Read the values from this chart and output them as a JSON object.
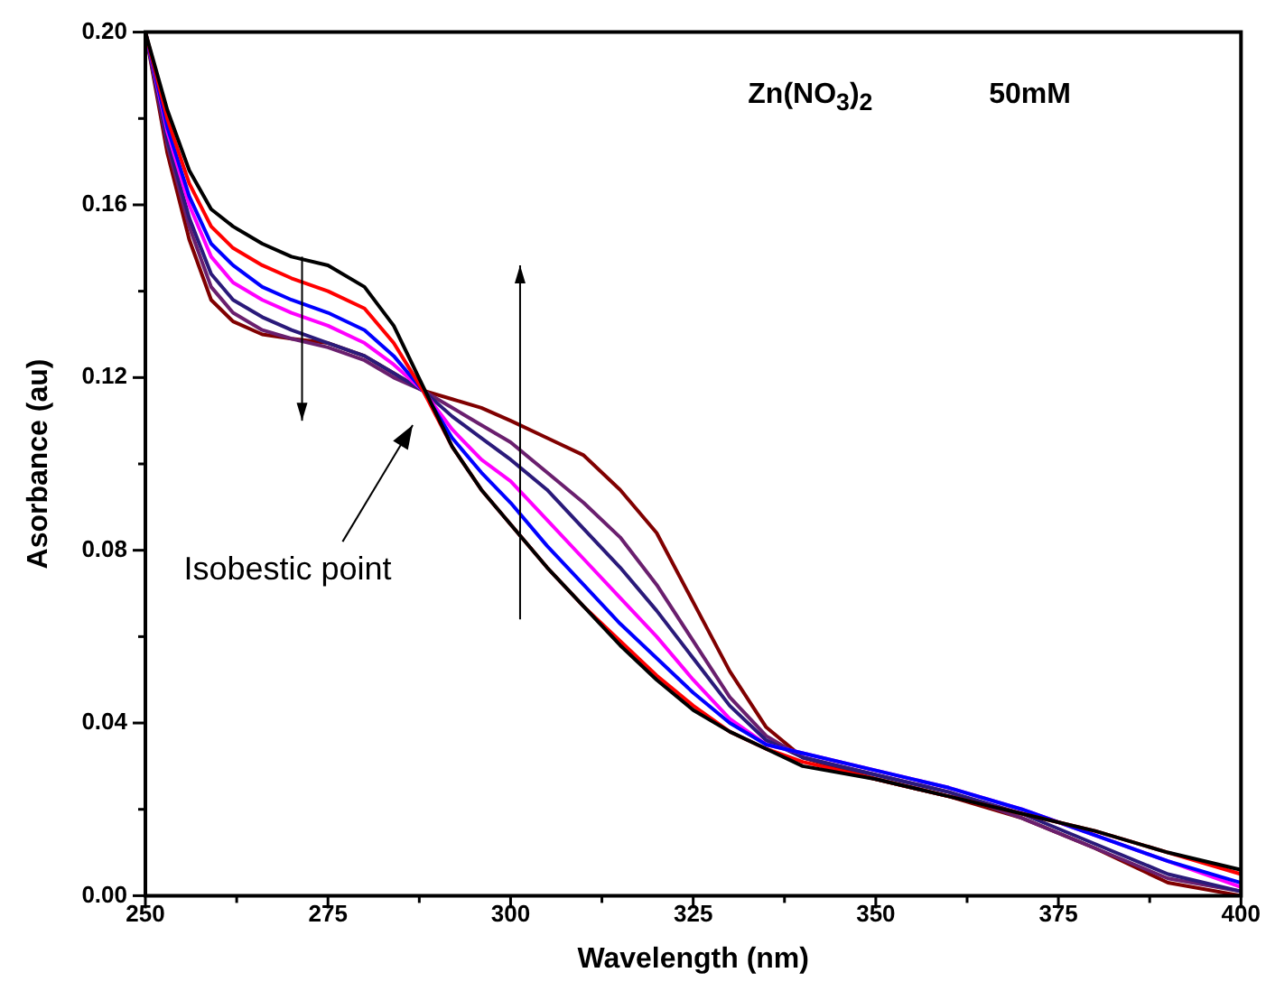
{
  "chart_data": {
    "type": "line",
    "xlabel": "Wavelength (nm)",
    "ylabel": "Asorbance (au)",
    "x": [
      250,
      253,
      256,
      259,
      262,
      266,
      270,
      275,
      280,
      284,
      288,
      292,
      296,
      300,
      305,
      310,
      315,
      320,
      325,
      330,
      335,
      340,
      350,
      360,
      370,
      380,
      390,
      400
    ],
    "xlim": [
      250,
      400
    ],
    "xticks": [
      250,
      {
        "value": 262.5,
        "label": null
      },
      275,
      {
        "value": 287.5,
        "label": null
      },
      300,
      {
        "value": 312.5,
        "label": null
      },
      325,
      {
        "value": 337.5,
        "label": null
      },
      350,
      {
        "value": 362.5,
        "label": null
      },
      375,
      {
        "value": 387.5,
        "label": null
      },
      400
    ],
    "ylim": [
      0,
      0.2
    ],
    "yticks": [
      {
        "value": 0,
        "label": "0.00"
      },
      {
        "value": 0.02,
        "label": null
      },
      {
        "value": 0.04,
        "label": "0.04"
      },
      {
        "value": 0.06,
        "label": null
      },
      {
        "value": 0.08,
        "label": "0.08"
      },
      {
        "value": 0.1,
        "label": null
      },
      {
        "value": 0.12,
        "label": "0.12"
      },
      {
        "value": 0.14,
        "label": null
      },
      {
        "value": 0.16,
        "label": "0.16"
      },
      {
        "value": 0.18,
        "label": null
      },
      {
        "value": 0.2,
        "label": "0.20"
      }
    ],
    "grid": false,
    "legend": false,
    "marker": "none",
    "line_style": "solid",
    "series": [
      {
        "color": "#000000",
        "values": [
          0.2,
          0.182,
          0.168,
          0.159,
          0.155,
          0.151,
          0.148,
          0.146,
          0.141,
          0.132,
          0.118,
          0.104,
          0.094,
          0.086,
          0.076,
          0.067,
          0.058,
          0.05,
          0.043,
          0.038,
          0.034,
          0.03,
          0.027,
          0.023,
          0.019,
          0.015,
          0.01,
          0.006
        ]
      },
      {
        "color": "#ff0000",
        "values": [
          0.2,
          0.18,
          0.165,
          0.155,
          0.15,
          0.146,
          0.143,
          0.14,
          0.136,
          0.128,
          0.117,
          0.104,
          0.094,
          0.086,
          0.076,
          0.067,
          0.059,
          0.051,
          0.044,
          0.038,
          0.034,
          0.031,
          0.027,
          0.023,
          0.019,
          0.015,
          0.01,
          0.005
        ]
      },
      {
        "color": "#0000ff",
        "values": [
          0.2,
          0.178,
          0.162,
          0.151,
          0.146,
          0.141,
          0.138,
          0.135,
          0.131,
          0.125,
          0.117,
          0.106,
          0.098,
          0.091,
          0.081,
          0.072,
          0.063,
          0.055,
          0.047,
          0.04,
          0.035,
          0.033,
          0.029,
          0.025,
          0.02,
          0.014,
          0.008,
          0.003
        ]
      },
      {
        "color": "#ff00ff",
        "values": [
          0.2,
          0.177,
          0.16,
          0.148,
          0.142,
          0.138,
          0.135,
          0.132,
          0.128,
          0.123,
          0.117,
          0.108,
          0.101,
          0.096,
          0.087,
          0.078,
          0.069,
          0.06,
          0.05,
          0.041,
          0.035,
          0.033,
          0.029,
          0.025,
          0.02,
          0.014,
          0.008,
          0.002
        ]
      },
      {
        "color": "#2a1a7a",
        "values": [
          0.2,
          0.175,
          0.157,
          0.144,
          0.138,
          0.134,
          0.131,
          0.128,
          0.125,
          0.121,
          0.117,
          0.111,
          0.106,
          0.101,
          0.094,
          0.085,
          0.076,
          0.066,
          0.055,
          0.044,
          0.036,
          0.032,
          0.028,
          0.024,
          0.019,
          0.012,
          0.005,
          0.001
        ]
      },
      {
        "color": "#6a1f6e",
        "values": [
          0.2,
          0.174,
          0.155,
          0.141,
          0.135,
          0.131,
          0.129,
          0.127,
          0.124,
          0.12,
          0.117,
          0.113,
          0.109,
          0.105,
          0.098,
          0.091,
          0.083,
          0.072,
          0.059,
          0.046,
          0.037,
          0.032,
          0.028,
          0.024,
          0.018,
          0.011,
          0.004,
          0.001
        ]
      },
      {
        "color": "#800000",
        "values": [
          0.2,
          0.172,
          0.152,
          0.138,
          0.133,
          0.13,
          0.129,
          0.128,
          0.125,
          0.121,
          0.117,
          0.115,
          0.113,
          0.11,
          0.106,
          0.102,
          0.094,
          0.084,
          0.068,
          0.052,
          0.039,
          0.032,
          0.027,
          0.023,
          0.018,
          0.011,
          0.003,
          0.0
        ]
      }
    ],
    "annotations": [
      "Zn(NO$_{3}$)$_{2}$",
      "50mM",
      "Isobestic point"
    ]
  }
}
